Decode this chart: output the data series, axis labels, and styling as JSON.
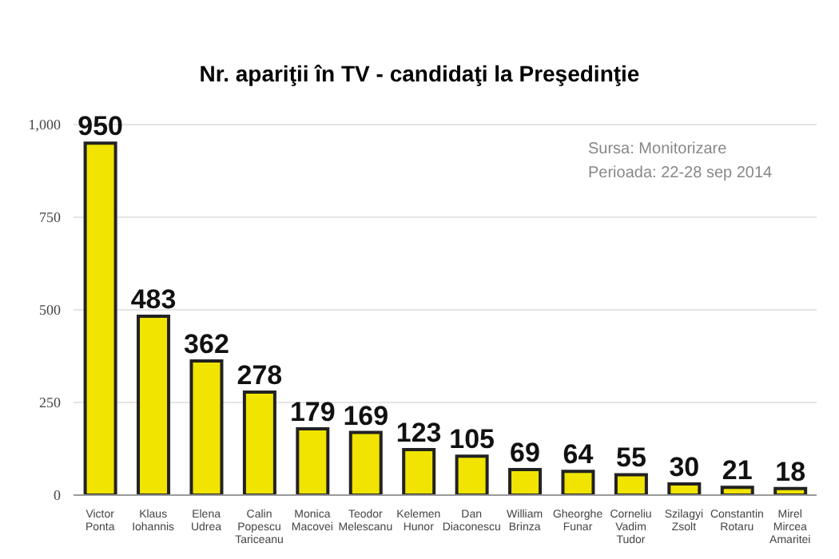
{
  "chart_data": {
    "type": "bar",
    "title": "Nr. apariţii în TV -  candidaţi la Preşedinţie",
    "categories": [
      "Victor Ponta",
      "Klaus Iohannis",
      "Elena Udrea",
      "Calin Popescu Tariceanu",
      "Monica Macovei",
      "Teodor Melescanu",
      "Kelemen Hunor",
      "Dan Diaconescu",
      "William Brinza",
      "Gheorghe Funar",
      "Corneliu Vadim Tudor",
      "Szilagyi Zsolt",
      "Constantin Rotaru",
      "Mirel Mircea Amaritei"
    ],
    "values": [
      950,
      483,
      362,
      278,
      179,
      169,
      123,
      105,
      69,
      64,
      55,
      30,
      21,
      18
    ],
    "color": "#f0e400",
    "data_labels": true,
    "ylim": [
      0,
      1000
    ],
    "yticks": [
      0,
      250,
      500,
      750,
      {
        "value": 1000,
        "label": "1,000"
      }
    ],
    "grid": "y",
    "annotations": [
      "Sursa: Monitorizare",
      "Perioada: 22-28 sep 2014"
    ]
  }
}
